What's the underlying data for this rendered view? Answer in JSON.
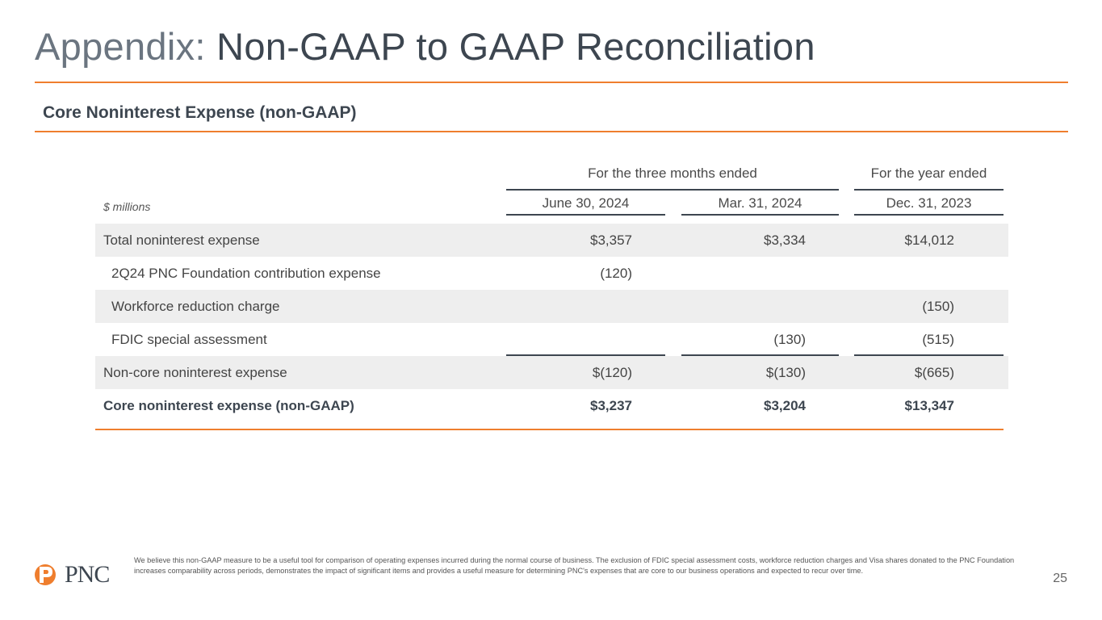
{
  "title": {
    "part1": "Appendix:",
    "part2": " Non-GAAP to GAAP Reconciliation"
  },
  "subtitle": "Core Noninterest Expense (non-GAAP)",
  "table": {
    "group_headers": {
      "three_months": "For the three months ended",
      "year": "For the year ended"
    },
    "units": "$ millions",
    "columns": [
      "June 30, 2024",
      "Mar. 31, 2024",
      "Dec. 31, 2023"
    ],
    "rows": [
      {
        "label": "Total noninterest expense",
        "values": [
          "$3,357",
          "$3,334",
          "$14,012"
        ]
      },
      {
        "label": "2Q24 PNC Foundation contribution expense",
        "values": [
          "(120)",
          "",
          ""
        ]
      },
      {
        "label": "Workforce reduction charge",
        "values": [
          "",
          "",
          "(150)"
        ]
      },
      {
        "label": "FDIC special assessment",
        "values": [
          "",
          "(130)",
          "(515)"
        ]
      },
      {
        "label": "Non-core noninterest expense",
        "values": [
          "$(120)",
          "$(130)",
          "$(665)"
        ]
      },
      {
        "label": "Core noninterest expense (non-GAAP)",
        "values": [
          "$3,237",
          "$3,204",
          "$13,347"
        ]
      }
    ]
  },
  "footer": {
    "logo_text": "PNC",
    "note": "We believe this non-GAAP measure to be a useful tool for comparison of operating expenses incurred during the normal course of business. The exclusion of FDIC special assessment costs, workforce reduction charges and Visa shares donated to the PNC Foundation increases comparability across periods, demonstrates the impact of significant items and provides a useful measure for determining PNC's expenses that are core to our business operations and expected to recur over time.",
    "page_number": "25"
  },
  "colors": {
    "accent": "#ef7e2e",
    "text_dark": "#3d4650",
    "shade": "#eeeeee"
  }
}
